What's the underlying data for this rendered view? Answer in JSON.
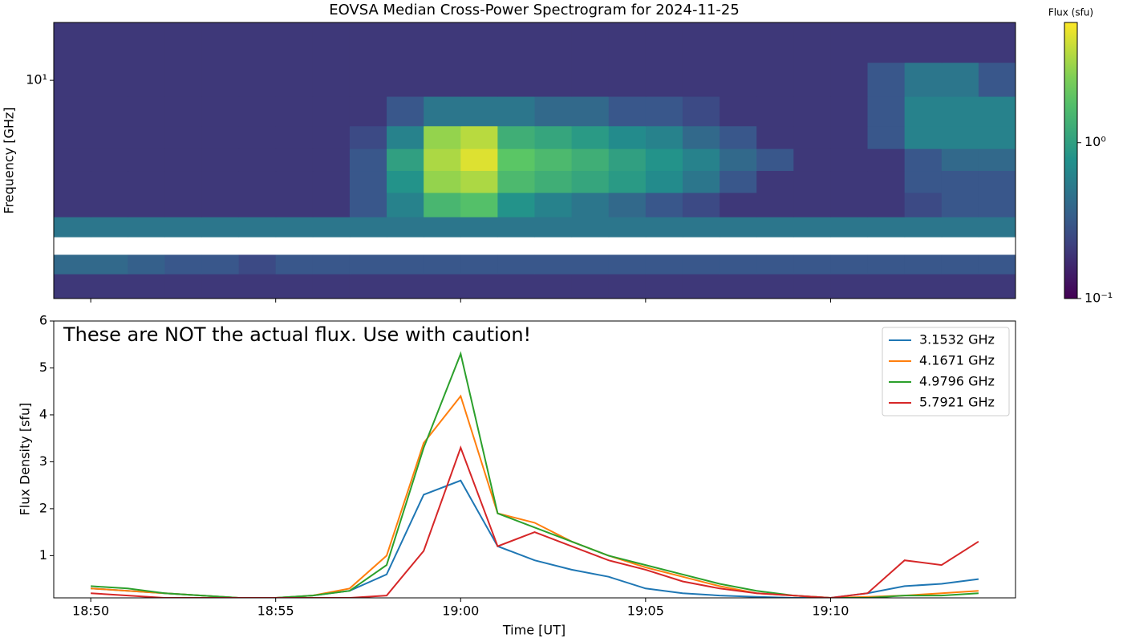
{
  "chart_data": [
    {
      "type": "heatmap",
      "title": "EOVSA Median Cross-Power Spectrogram for 2024-11-25",
      "ylabel": "Frequency [GHz]",
      "x": [
        "18:49",
        "18:50",
        "18:51",
        "18:52",
        "18:53",
        "18:54",
        "18:55",
        "18:56",
        "18:57",
        "18:58",
        "18:59",
        "19:00",
        "19:01",
        "19:02",
        "19:03",
        "19:04",
        "19:05",
        "19:06",
        "19:07",
        "19:08",
        "19:09",
        "19:10",
        "19:11",
        "19:12",
        "19:13",
        "19:14"
      ],
      "xlim": [
        "18:49",
        "19:15"
      ],
      "y_bins": [
        1.09,
        1.4,
        1.7,
        2.04,
        2.5,
        3.2,
        4.0,
        5.0,
        6.3,
        8.5,
        12,
        18
      ],
      "ylim": [
        1.09,
        18
      ],
      "ylog": true,
      "yticks": [
        {
          "value": 10,
          "label": "10¹"
        }
      ],
      "values": [
        [
          0.2,
          0.2,
          0.2,
          0.2,
          0.2,
          0.2,
          0.2,
          0.2,
          0.2,
          0.2,
          0.2,
          0.2,
          0.2,
          0.2,
          0.2,
          0.2,
          0.2,
          0.2,
          0.2,
          0.2,
          0.2,
          0.2,
          0.2,
          0.2,
          0.2,
          0.2
        ],
        [
          0.4,
          0.4,
          0.35,
          0.3,
          0.3,
          0.25,
          0.3,
          0.3,
          0.3,
          0.3,
          0.3,
          0.3,
          0.3,
          0.3,
          0.3,
          0.3,
          0.3,
          0.3,
          0.3,
          0.3,
          0.3,
          0.3,
          0.3,
          0.3,
          0.3,
          0.3
        ],
        [
          null,
          null,
          null,
          null,
          null,
          null,
          null,
          null,
          null,
          null,
          null,
          null,
          null,
          null,
          null,
          null,
          null,
          null,
          null,
          null,
          null,
          null,
          null,
          null,
          null,
          null
        ],
        [
          0.5,
          0.5,
          0.5,
          0.5,
          0.5,
          0.5,
          0.5,
          0.5,
          0.5,
          0.5,
          0.5,
          0.5,
          0.5,
          0.5,
          0.5,
          0.5,
          0.5,
          0.5,
          0.5,
          0.5,
          0.5,
          0.5,
          0.5,
          0.5,
          0.5,
          0.5
        ],
        [
          0.2,
          0.2,
          0.2,
          0.2,
          0.2,
          0.2,
          0.2,
          0.2,
          0.3,
          0.6,
          1.5,
          1.8,
          0.8,
          0.6,
          0.5,
          0.4,
          0.3,
          0.25,
          0.2,
          0.2,
          0.2,
          0.2,
          0.2,
          0.25,
          0.3,
          0.3
        ],
        [
          0.2,
          0.2,
          0.2,
          0.2,
          0.2,
          0.2,
          0.2,
          0.2,
          0.3,
          0.8,
          3.0,
          3.5,
          1.6,
          1.3,
          1.1,
          0.9,
          0.7,
          0.5,
          0.3,
          0.2,
          0.2,
          0.2,
          0.2,
          0.3,
          0.3,
          0.3
        ],
        [
          0.2,
          0.2,
          0.2,
          0.2,
          0.2,
          0.2,
          0.2,
          0.2,
          0.3,
          1.0,
          3.5,
          4.8,
          2.0,
          1.6,
          1.3,
          1.0,
          0.8,
          0.6,
          0.4,
          0.3,
          0.2,
          0.2,
          0.2,
          0.3,
          0.4,
          0.4
        ],
        [
          0.2,
          0.2,
          0.2,
          0.2,
          0.2,
          0.2,
          0.2,
          0.2,
          0.25,
          0.6,
          3.0,
          3.8,
          1.3,
          1.1,
          0.9,
          0.7,
          0.6,
          0.4,
          0.3,
          0.2,
          0.2,
          0.2,
          0.3,
          0.6,
          0.6,
          0.6
        ],
        [
          0.2,
          0.2,
          0.2,
          0.2,
          0.2,
          0.2,
          0.2,
          0.2,
          0.2,
          0.3,
          0.5,
          0.5,
          0.5,
          0.4,
          0.4,
          0.3,
          0.3,
          0.25,
          0.2,
          0.2,
          0.2,
          0.2,
          0.3,
          0.6,
          0.6,
          0.6
        ],
        [
          0.2,
          0.2,
          0.2,
          0.2,
          0.2,
          0.2,
          0.2,
          0.2,
          0.2,
          0.2,
          0.2,
          0.2,
          0.2,
          0.2,
          0.2,
          0.2,
          0.2,
          0.2,
          0.2,
          0.2,
          0.2,
          0.2,
          0.3,
          0.5,
          0.5,
          0.3
        ],
        [
          0.2,
          0.2,
          0.2,
          0.2,
          0.2,
          0.2,
          0.2,
          0.2,
          0.2,
          0.2,
          0.2,
          0.2,
          0.2,
          0.2,
          0.2,
          0.2,
          0.2,
          0.2,
          0.2,
          0.2,
          0.2,
          0.2,
          0.2,
          0.2,
          0.2,
          0.2
        ]
      ],
      "colorbar": {
        "label": "Flux (sfu)",
        "colormap": "viridis",
        "log": true,
        "lim": [
          0.1,
          5.9
        ],
        "ticks": [
          {
            "value": 1,
            "label": "10⁰"
          },
          {
            "value": 0.1,
            "label": "10⁻¹"
          }
        ]
      }
    },
    {
      "type": "line",
      "xlabel": "Time [UT]",
      "ylabel": "Flux Density [sfu]",
      "annotation": "These are NOT the actual flux. Use with caution!",
      "x": [
        "18:50",
        "18:51",
        "18:52",
        "18:53",
        "18:54",
        "18:55",
        "18:56",
        "18:57",
        "18:58",
        "18:59",
        "19:00",
        "19:01",
        "19:02",
        "19:03",
        "19:04",
        "19:05",
        "19:06",
        "19:07",
        "19:08",
        "19:09",
        "19:10",
        "19:11",
        "19:12",
        "19:13",
        "19:14"
      ],
      "xlim": [
        "18:49",
        "19:15"
      ],
      "xticks": [
        "18:50",
        "18:55",
        "19:00",
        "19:05",
        "19:10"
      ],
      "ylim": [
        0.1,
        6
      ],
      "yticks": [
        1,
        2,
        3,
        4,
        5,
        6
      ],
      "legend": "upper right",
      "series": [
        {
          "name": "3.1532 GHz",
          "color": "#1f77b4",
          "values": [
            0.3,
            0.25,
            0.2,
            0.15,
            0.1,
            0.1,
            0.15,
            0.25,
            0.6,
            2.3,
            2.6,
            1.2,
            0.9,
            0.7,
            0.55,
            0.3,
            0.2,
            0.15,
            0.12,
            0.1,
            0.1,
            0.2,
            0.35,
            0.4,
            0.5
          ]
        },
        {
          "name": "4.1671 GHz",
          "color": "#ff7f0e",
          "values": [
            0.3,
            0.25,
            0.2,
            0.15,
            0.1,
            0.1,
            0.15,
            0.3,
            1.0,
            3.4,
            4.4,
            1.9,
            1.7,
            1.3,
            1.0,
            0.75,
            0.55,
            0.35,
            0.2,
            0.15,
            0.1,
            0.12,
            0.15,
            0.2,
            0.25
          ]
        },
        {
          "name": "4.9796 GHz",
          "color": "#2ca02c",
          "values": [
            0.35,
            0.3,
            0.2,
            0.15,
            0.1,
            0.1,
            0.15,
            0.25,
            0.8,
            3.3,
            5.3,
            1.9,
            1.6,
            1.3,
            1.0,
            0.8,
            0.6,
            0.4,
            0.25,
            0.15,
            0.1,
            0.1,
            0.15,
            0.15,
            0.2
          ]
        },
        {
          "name": "5.7921 GHz",
          "color": "#d62728",
          "values": [
            0.2,
            0.15,
            0.1,
            0.1,
            0.1,
            0.1,
            0.1,
            0.1,
            0.15,
            1.1,
            3.3,
            1.2,
            1.5,
            1.2,
            0.9,
            0.7,
            0.45,
            0.3,
            0.2,
            0.15,
            0.1,
            0.2,
            0.9,
            0.8,
            1.3
          ]
        }
      ]
    }
  ]
}
